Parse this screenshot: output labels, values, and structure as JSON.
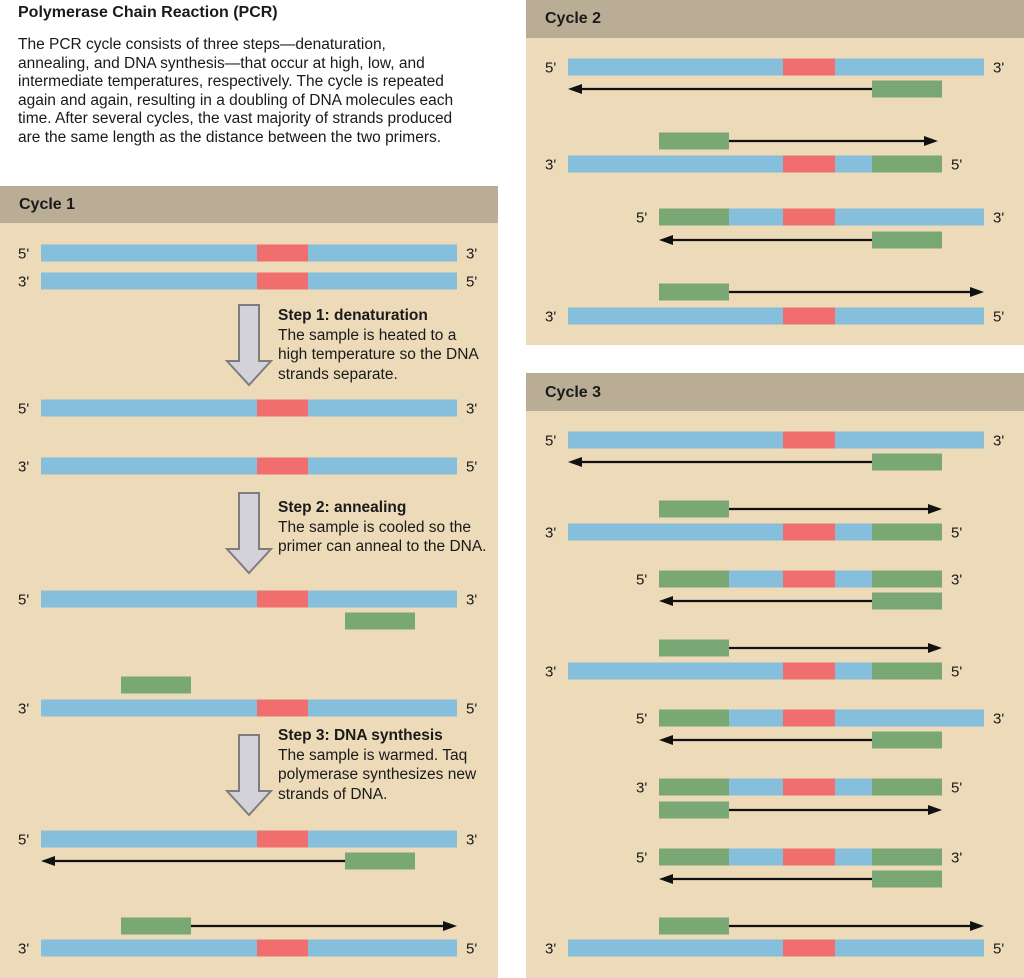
{
  "title": "Polymerase Chain Reaction (PCR)",
  "intro": "The PCR cycle consists of three steps—denaturation, annealing, and DNA synthesis—that occur at high, low, and intermediate temperatures, respectively. The cycle is repeated again and again, resulting in a doubling of DNA molecules each time. After several cycles, the vast majority of strands produced are the same length as the distance between the two primers.",
  "cycles": [
    {
      "label": "Cycle 1"
    },
    {
      "label": "Cycle 2"
    },
    {
      "label": "Cycle 3"
    }
  ],
  "steps": [
    {
      "heading": "Step 1: denaturation",
      "text": "The sample is heated to a high temperature so the DNA strands separate."
    },
    {
      "heading": "Step 2: annealing",
      "text": "The sample is cooled so the primer can anneal to the DNA."
    },
    {
      "heading": "Step 3: DNA synthesis",
      "text": "The sample is warmed. Taq polymerase synthesizes new strands of DNA."
    }
  ],
  "end_labels": {
    "five": "5'",
    "three": "3'"
  },
  "colors": {
    "template_dna": "#86bfdc",
    "target_region": "#f06e6e",
    "primer": "#7aa874",
    "header": "#b9ad96",
    "panel": "#ecdab8",
    "step_arrow": "#d2d2d8"
  }
}
